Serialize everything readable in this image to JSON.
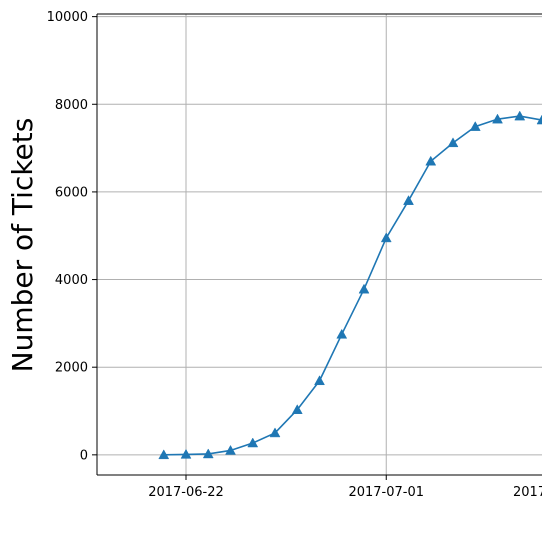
{
  "chart_data": {
    "type": "line",
    "title": "",
    "xlabel": "",
    "ylabel": "Number of Tickets",
    "x_axis_type": "date",
    "x": [
      "2017-06-21",
      "2017-06-22",
      "2017-06-23",
      "2017-06-24",
      "2017-06-25",
      "2017-06-26",
      "2017-06-27",
      "2017-06-28",
      "2017-06-29",
      "2017-06-30",
      "2017-07-01",
      "2017-07-02",
      "2017-07-03",
      "2017-07-04",
      "2017-07-05",
      "2017-07-06",
      "2017-07-07",
      "2017-07-08"
    ],
    "series": [
      {
        "color": "#1f77b4",
        "marker": "triangle-up",
        "values": [
          0,
          10,
          20,
          100,
          270,
          500,
          1030,
          1690,
          2750,
          3780,
          4950,
          5800,
          6700,
          7120,
          7490,
          7660,
          7730,
          7640
        ]
      }
    ],
    "xlim": [
      "2017-06-18",
      "2017-07-08"
    ],
    "ylim": [
      -460,
      10060
    ],
    "x_ticks": [
      "2017-06-22",
      "2017-07-01",
      "2017-07-10"
    ],
    "x_tick_labels": [
      "2017-06-22",
      "2017-07-01",
      "2017"
    ],
    "y_ticks": [
      0,
      2000,
      4000,
      6000,
      8000,
      10000
    ],
    "y_tick_labels": [
      "0",
      "2000",
      "4000",
      "6000",
      "8000",
      "10000"
    ],
    "grid": true,
    "legend": "none"
  }
}
